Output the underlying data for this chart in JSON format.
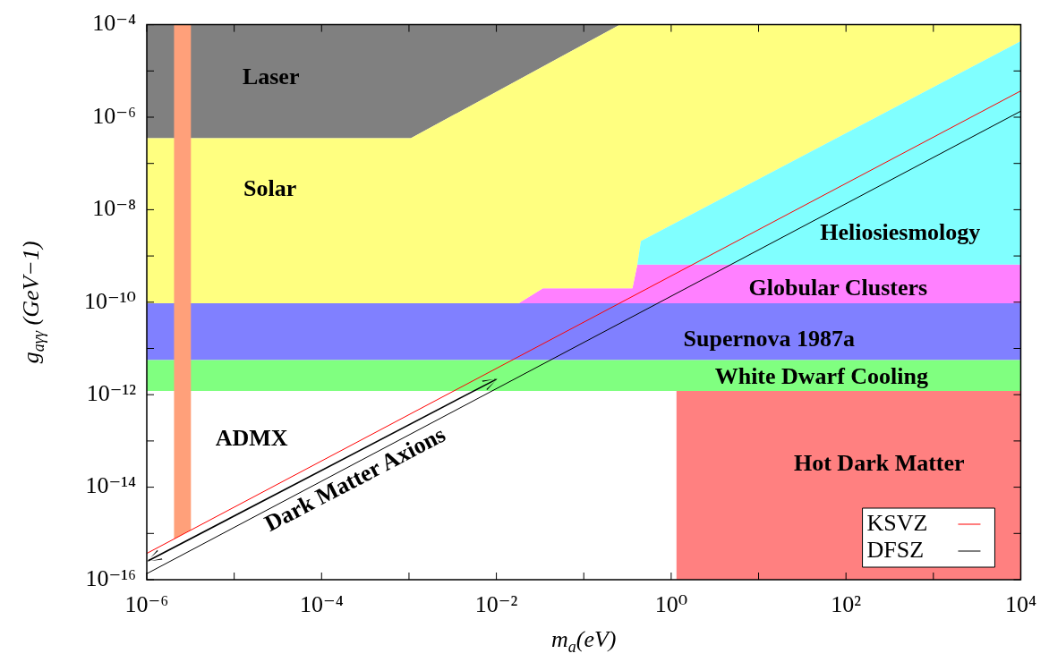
{
  "chart_data": {
    "type": "area",
    "xlabel": "m$_{a}$(eV)",
    "ylabel": "g$_{aγγ}$ (GeV−1)",
    "log": "xy",
    "xlim": [
      1e-06,
      10000.0
    ],
    "ylim": [
      1e-16,
      0.0001
    ],
    "xticks": [
      {
        "value": 1e-06,
        "label": "10⁻⁶"
      },
      {
        "value": 1e-05,
        "label": null
      },
      {
        "value": 0.0001,
        "label": "10⁻⁴"
      },
      {
        "value": 0.001,
        "label": null
      },
      {
        "value": 0.01,
        "label": "10⁻²"
      },
      {
        "value": 0.1,
        "label": null
      },
      {
        "value": 1,
        "label": "10⁰"
      },
      {
        "value": 10,
        "label": null
      },
      {
        "value": 100,
        "label": "10²"
      },
      {
        "value": 1000,
        "label": null
      },
      {
        "value": 10000,
        "label": "10⁴"
      }
    ],
    "yticks": [
      {
        "value": 1e-16,
        "label": "10⁻¹⁶"
      },
      {
        "value": 1e-15,
        "label": null
      },
      {
        "value": 1e-14,
        "label": "10⁻¹⁴"
      },
      {
        "value": 1e-13,
        "label": null
      },
      {
        "value": 1e-12,
        "label": "10⁻¹²"
      },
      {
        "value": 1e-11,
        "label": null
      },
      {
        "value": 1e-10,
        "label": "10⁻¹⁰"
      },
      {
        "value": 1e-09,
        "label": null
      },
      {
        "value": 1e-08,
        "label": "10⁻⁸"
      },
      {
        "value": 1e-07,
        "label": null
      },
      {
        "value": 1e-06,
        "label": "10⁻⁶"
      },
      {
        "value": 1e-05,
        "label": null
      },
      {
        "value": 0.0001,
        "label": "10⁻⁴"
      }
    ],
    "legend": "bottom right",
    "marker": "none",
    "series": [
      {
        "name": "Laser",
        "color": "#808080",
        "x": [
          1e-06,
          0.26,
          0.00105,
          1e-06
        ],
        "values": [
          0.0001,
          0.0001,
          3.5e-07,
          3.5e-07
        ]
      },
      {
        "name": "Globular Clusters",
        "color": "#ff80ff",
        "x": [
          0.018,
          0.034,
          0.36,
          0.41,
          10000.0,
          10000.0
        ],
        "values": [
          9.5e-11,
          2e-10,
          2e-10,
          6.5e-10,
          6.5e-10,
          9.5e-11
        ]
      },
      {
        "name": "Solar",
        "color": "#ffff80",
        "x": [
          1e-06,
          0.00105,
          0.26,
          10000.0,
          10000.0,
          0.45,
          0.41,
          0.36,
          0.034,
          0.018,
          1e-06
        ],
        "values": [
          3.5e-07,
          3.5e-07,
          0.0001,
          0.0001,
          4.4e-05,
          2.1e-09,
          6.5e-10,
          2e-10,
          2e-10,
          9.5e-11,
          9.5e-11
        ]
      },
      {
        "name": "Heliosiesmology",
        "color": "#80ffff",
        "x": [
          0.45,
          10000.0,
          10000.0,
          0.41
        ],
        "values": [
          2.1e-09,
          4.4e-05,
          6.5e-10,
          6.5e-10
        ]
      },
      {
        "name": "Supernova 1987a",
        "color": "#8080ff",
        "x": [
          1e-06,
          10000.0,
          10000.0,
          1e-06
        ],
        "values": [
          9.5e-11,
          9.5e-11,
          5.6e-12,
          5.6e-12
        ]
      },
      {
        "name": "White Dwarf Cooling",
        "color": "#80ff80",
        "x": [
          1e-06,
          10000.0,
          10000.0,
          1e-06
        ],
        "values": [
          5.6e-12,
          5.6e-12,
          1.2e-12,
          1.2e-12
        ]
      },
      {
        "name": "Hot Dark Matter",
        "color": "#ff8080",
        "x": [
          1.15,
          10000.0,
          10000.0,
          1.15
        ],
        "values": [
          1.2e-12,
          1.2e-12,
          1e-16,
          1e-16
        ]
      },
      {
        "name": "ADMX",
        "color": "#ffa07a",
        "x": [
          2.05e-06,
          3.2e-06,
          3.2e-06,
          2.05e-06
        ],
        "values": [
          0.0001,
          0.0001,
          1.2e-15,
          7.6e-16
        ]
      },
      {
        "type": "line",
        "name": "KSVZ",
        "color": "#ff0000",
        "x": [
          1e-06,
          10000.0
        ],
        "values": [
          3.7e-16,
          3.7e-06
        ]
      },
      {
        "type": "line",
        "name": "DFSZ",
        "color": "#000000",
        "x": [
          1e-06,
          10000.0
        ],
        "values": [
          1.35e-16,
          1.35e-06
        ]
      }
    ],
    "annotations": [
      "Dark Matter Axions"
    ]
  }
}
